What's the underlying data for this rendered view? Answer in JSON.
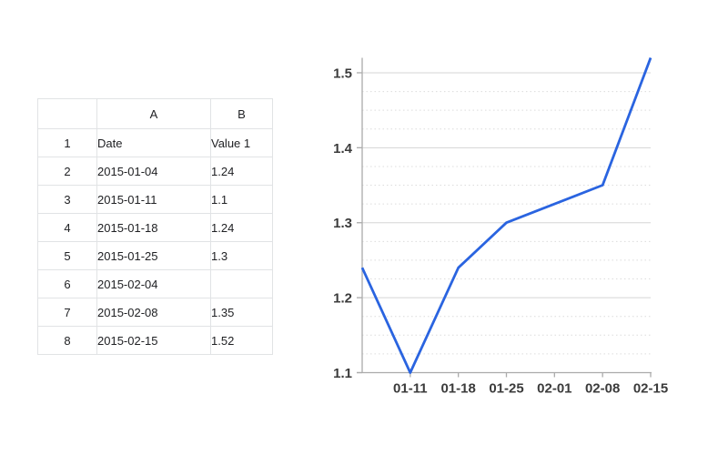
{
  "table": {
    "corner_label": "",
    "column_headers": [
      "A",
      "B"
    ],
    "rows": [
      {
        "num": "1",
        "a": "Date",
        "b": "Value 1",
        "highlight": true
      },
      {
        "num": "2",
        "a": "2015-01-04",
        "b": "1.24",
        "highlight": false
      },
      {
        "num": "3",
        "a": "2015-01-11",
        "b": "1.1",
        "highlight": false
      },
      {
        "num": "4",
        "a": "2015-01-18",
        "b": "1.24",
        "highlight": false
      },
      {
        "num": "5",
        "a": "2015-01-25",
        "b": "1.3",
        "highlight": false
      },
      {
        "num": "6",
        "a": "2015-02-04",
        "b": "",
        "highlight": false
      },
      {
        "num": "7",
        "a": "2015-02-08",
        "b": "1.35",
        "highlight": false
      },
      {
        "num": "8",
        "a": "2015-02-15",
        "b": "1.52",
        "highlight": false
      }
    ]
  },
  "chart_data": {
    "type": "line",
    "title": "",
    "xlabel": "",
    "ylabel": "",
    "series": [
      {
        "name": "Value 1",
        "x_dates": [
          "2015-01-04",
          "2015-01-11",
          "2015-01-18",
          "2015-01-25",
          "2015-02-04",
          "2015-02-08",
          "2015-02-15"
        ],
        "values": [
          1.24,
          1.1,
          1.24,
          1.3,
          null,
          1.35,
          1.52
        ],
        "missing_values_interpolated": true
      }
    ],
    "x_tick_labels": [
      "01-11",
      "01-18",
      "01-25",
      "02-01",
      "02-08",
      "02-15"
    ],
    "x_tick_dates": [
      "2015-01-11",
      "2015-01-18",
      "2015-01-25",
      "2015-02-01",
      "2015-02-08",
      "2015-02-15"
    ],
    "y_ticks": [
      1.1,
      1.2,
      1.3,
      1.4,
      1.5
    ],
    "ylim": [
      1.1,
      1.52
    ],
    "minor_grid_step": 0.025,
    "grid": "horizontal major solid, minor dotted",
    "legend": "none",
    "colors": {
      "line": "#2a64e0",
      "axis": "#ababab",
      "major_grid": "#d5d5d5",
      "minor_grid": "#dcdcdc",
      "tick_label": "#3b3b3b"
    }
  }
}
